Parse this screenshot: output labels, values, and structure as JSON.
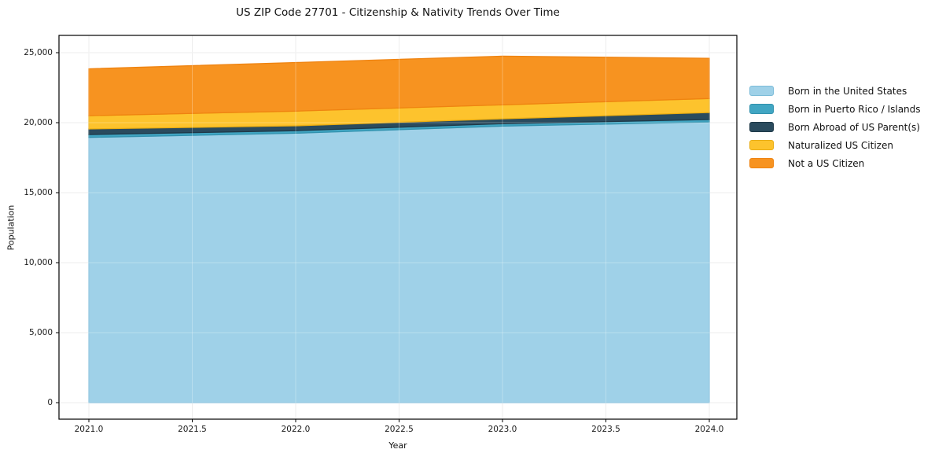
{
  "figure": {
    "title": "US ZIP Code 27701 - Citizenship & Nativity Trends Over Time"
  },
  "chart_data": {
    "type": "area",
    "stacked": true,
    "title": "US ZIP Code 27701 - Citizenship & Nativity Trends Over Time",
    "xlabel": "Year",
    "ylabel": "Population",
    "x": [
      2021,
      2022,
      2023,
      2024
    ],
    "series": [
      {
        "name": "Born in the United States",
        "color": "#9fd1e8",
        "edge": "#7cbcd9",
        "values": [
          18950,
          19250,
          19750,
          20050
        ]
      },
      {
        "name": "Born in Puerto Rico / Islands",
        "color": "#41a6c3",
        "edge": "#3292ae",
        "values": [
          200,
          175,
          175,
          175
        ]
      },
      {
        "name": "Born Abroad of US Parent(s)",
        "color": "#2a4b5e",
        "edge": "#1f3948",
        "values": [
          400,
          350,
          350,
          500
        ]
      },
      {
        "name": "Naturalized US Citizen",
        "color": "#fdc32d",
        "edge": "#eaad12",
        "values": [
          950,
          1050,
          1000,
          1000
        ]
      },
      {
        "name": "Not a US Citizen",
        "color": "#f79320",
        "edge": "#ef8310",
        "values": [
          3350,
          3475,
          3475,
          2875
        ]
      }
    ],
    "xticks": {
      "values": [
        2021.0,
        2021.5,
        2022.0,
        2022.5,
        2023.0,
        2023.5,
        2024.0
      ],
      "labels": [
        "2021.0",
        "2021.5",
        "2022.0",
        "2022.5",
        "2023.0",
        "2023.5",
        "2024.0"
      ]
    },
    "yticks": {
      "values": [
        0,
        5000,
        10000,
        15000,
        20000,
        25000
      ],
      "labels": [
        "0",
        "5,000",
        "10,000",
        "15,000",
        "20,000",
        "25,000"
      ]
    },
    "xlim": [
      2020.856,
      2024.133
    ],
    "ylim": [
      0,
      25000
    ],
    "grid": true,
    "grid_color": "#e7e7e7",
    "legend_position": "right-outside"
  }
}
